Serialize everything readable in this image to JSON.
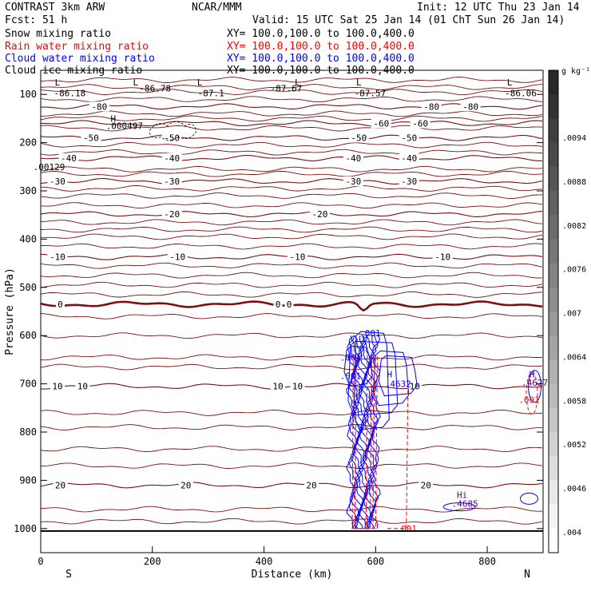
{
  "header": {
    "left_line1": "CONTRAST  3km ARW",
    "left_line2": "Fcst:   51 h",
    "center": "NCAR/MMM",
    "init": "Init: 12 UTC Thu 23 Jan 14",
    "valid": "Valid: 15 UTC Sat 25 Jan 14 (01 ChT Sun 26 Jan 14)",
    "fields": [
      {
        "name": "Snow mixing ratio",
        "xy": "XY= 100.0,100.0 to 100.0,400.0",
        "color": "#000000"
      },
      {
        "name": "Rain water mixing ratio",
        "xy": "XY= 100.0,100.0 to 100.0,400.0",
        "color": "#ff0000"
      },
      {
        "name": "Cloud water mixing ratio",
        "xy": "XY= 100.0,100.0 to 100.0,400.0",
        "color": "#0000ff"
      },
      {
        "name": "Cloud ice mixing ratio",
        "xy": "XY= 100.0,100.0 to 100.0,400.0",
        "color": "#000000"
      }
    ]
  },
  "chart_data": {
    "type": "contour",
    "xlabel": "Distance (km)",
    "ylabel": "Pressure (hPa)",
    "xlim": [
      0,
      900
    ],
    "ylim": [
      1050,
      50
    ],
    "x_ticks": [
      0,
      200,
      400,
      600,
      800
    ],
    "y_ticks": [
      100,
      200,
      300,
      400,
      500,
      600,
      700,
      800,
      900,
      1000
    ],
    "x_end_labels": {
      "left": "S",
      "right": "N"
    },
    "colorbar": {
      "unit": "g kg⁻¹",
      "labels": [
        ".0094",
        ".0088",
        ".0082",
        ".0076",
        ".007",
        ".0064",
        ".0058",
        ".0052",
        ".0046",
        ".004"
      ]
    },
    "temperature_contours": [
      {
        "label": "-80",
        "p": 125,
        "label_x": [
          105,
          700,
          770
        ]
      },
      {
        "label": "-60",
        "p": 160,
        "label_x": [
          610,
          680
        ]
      },
      {
        "label": "-50",
        "p": 190,
        "label_x": [
          90,
          235,
          570,
          660
        ]
      },
      {
        "label": "-40",
        "p": 232,
        "label_x": [
          50,
          235,
          560,
          660
        ]
      },
      {
        "label": "-30",
        "p": 280,
        "label_x": [
          30,
          235,
          560,
          660
        ]
      },
      {
        "label": "-20",
        "p": 348,
        "label_x": [
          235,
          500
        ]
      },
      {
        "label": "-10",
        "p": 437,
        "label_x": [
          30,
          245,
          460,
          720
        ]
      },
      {
        "label": "0",
        "p": 535,
        "label_x": [
          35,
          425,
          445
        ]
      },
      {
        "label": "10",
        "p": 705,
        "label_x": [
          30,
          75,
          425,
          460,
          670
        ]
      },
      {
        "label": "20",
        "p": 910,
        "label_x": [
          35,
          260,
          485,
          690
        ]
      }
    ],
    "extra_contour_p": [
      70,
      85,
      95,
      110,
      140,
      150,
      170,
      205,
      220,
      255,
      265,
      295,
      310,
      330,
      365,
      380,
      395,
      415,
      455,
      475,
      495,
      515,
      560,
      600,
      645,
      665,
      760,
      790,
      835,
      870,
      960,
      985
    ],
    "annotations": [
      {
        "text": "L",
        "x": 30,
        "p": 75
      },
      {
        "text": "-86.18",
        "x": 52,
        "p": 97
      },
      {
        "text": "L",
        "x": 170,
        "p": 75
      },
      {
        "text": "-86.78",
        "x": 205,
        "p": 87
      },
      {
        "text": "L",
        "x": 285,
        "p": 75
      },
      {
        "text": "-87.1",
        "x": 305,
        "p": 97
      },
      {
        "text": "L",
        "x": 460,
        "p": 75
      },
      {
        "text": "-87.67",
        "x": 440,
        "p": 87
      },
      {
        "text": "L",
        "x": 570,
        "p": 75
      },
      {
        "text": "-87.57",
        "x": 590,
        "p": 97
      },
      {
        "text": "L",
        "x": 840,
        "p": 75
      },
      {
        "text": "-86.06",
        "x": 860,
        "p": 97
      },
      {
        "text": "H",
        "x": 130,
        "p": 150
      },
      {
        "text": ".000497",
        "x": 150,
        "p": 165
      },
      {
        "text": ".00129",
        "x": 15,
        "p": 250
      },
      {
        "text": "H",
        "x": 625,
        "p": 680
      },
      {
        "text": ".4632",
        "x": 640,
        "p": 700
      },
      {
        "text": ".001",
        "x": 555,
        "p": 645
      },
      {
        "text": ".001",
        "x": 555,
        "p": 683
      },
      {
        "text": ".001",
        "x": 590,
        "p": 595
      },
      {
        "text": "H",
        "x": 880,
        "p": 680
      },
      {
        "text": ".4627",
        "x": 885,
        "p": 697
      },
      {
        "text": "Hi",
        "x": 755,
        "p": 930
      },
      {
        "text": ".4685",
        "x": 760,
        "p": 948
      },
      {
        "text": ".001",
        "x": 655,
        "p": 1000
      },
      {
        "text": ".001",
        "x": 875,
        "p": 733
      }
    ]
  }
}
